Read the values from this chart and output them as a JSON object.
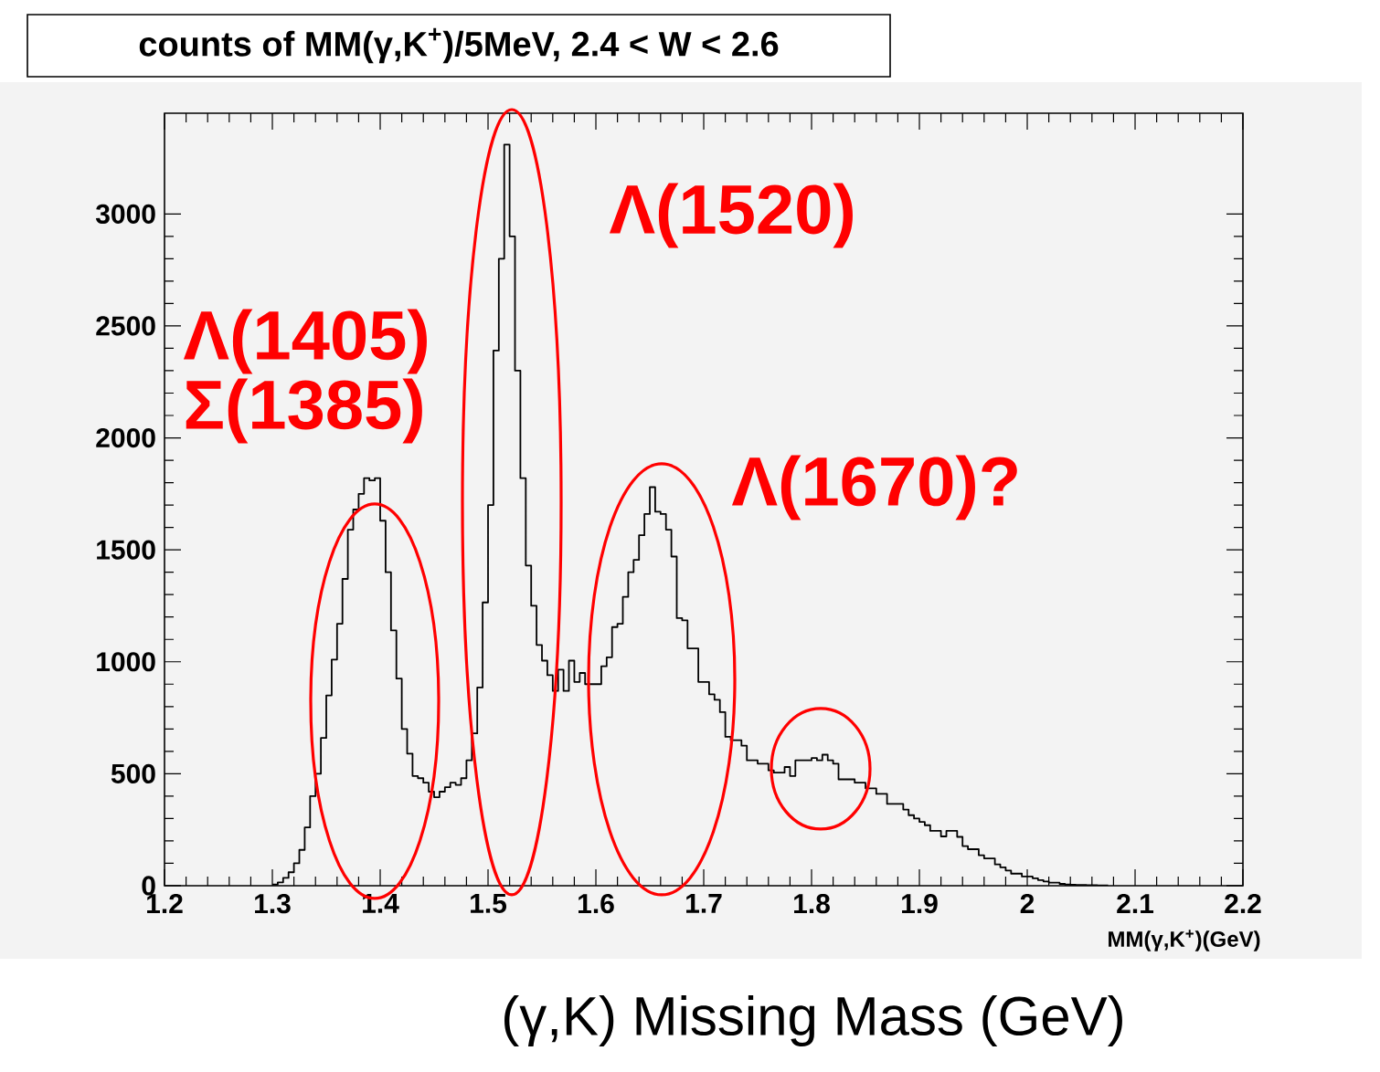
{
  "chart_data": {
    "type": "histogram",
    "title": "counts of MM(γ,K$^{+}$)/5MeV, 2.4 < W < 2.6",
    "xlabel": "MM(γ,K$^{+}$)(GeV)",
    "color": "#000000",
    "xlim": [
      1.2,
      2.2
    ],
    "ylim": [
      0,
      3450
    ],
    "xticks": [
      1.2,
      1.3,
      1.4,
      1.5,
      1.6,
      1.7,
      1.8,
      1.9,
      2,
      2.1,
      2.2
    ],
    "yticks": [
      0,
      500,
      1000,
      1500,
      2000,
      2500,
      3000
    ],
    "bins": [
      1.3,
      1.305,
      1.31,
      1.315,
      1.32,
      1.325,
      1.33,
      1.335,
      1.34,
      1.345,
      1.35,
      1.355,
      1.36,
      1.365,
      1.37,
      1.375,
      1.38,
      1.385,
      1.39,
      1.395,
      1.4,
      1.405,
      1.41,
      1.415,
      1.42,
      1.425,
      1.43,
      1.435,
      1.44,
      1.445,
      1.45,
      1.455,
      1.46,
      1.465,
      1.47,
      1.475,
      1.48,
      1.485,
      1.49,
      1.495,
      1.5,
      1.505,
      1.51,
      1.515,
      1.52,
      1.525,
      1.53,
      1.535,
      1.54,
      1.545,
      1.55,
      1.555,
      1.56,
      1.565,
      1.57,
      1.575,
      1.58,
      1.585,
      1.59,
      1.595,
      1.6,
      1.605,
      1.61,
      1.615,
      1.62,
      1.625,
      1.63,
      1.635,
      1.64,
      1.645,
      1.65,
      1.655,
      1.66,
      1.665,
      1.67,
      1.675,
      1.68,
      1.685,
      1.69,
      1.695,
      1.7,
      1.705,
      1.71,
      1.715,
      1.72,
      1.725,
      1.73,
      1.735,
      1.74,
      1.745,
      1.75,
      1.755,
      1.76,
      1.765,
      1.77,
      1.775,
      1.78,
      1.785,
      1.79,
      1.795,
      1.8,
      1.805,
      1.81,
      1.815,
      1.82,
      1.825,
      1.83,
      1.835,
      1.84,
      1.845,
      1.85,
      1.855,
      1.86,
      1.865,
      1.87,
      1.875,
      1.88,
      1.885,
      1.89,
      1.895,
      1.9,
      1.905,
      1.91,
      1.915,
      1.92,
      1.925,
      1.93,
      1.935,
      1.94,
      1.945,
      1.95,
      1.955,
      1.96,
      1.965,
      1.97,
      1.975,
      1.98,
      1.985,
      1.99,
      1.995,
      2,
      2.005,
      2.01,
      2.015,
      2.02,
      2.025,
      2.03,
      2.035,
      2.04,
      2.045,
      2.05,
      2.055,
      2.06,
      2.065,
      2.07,
      2.075
    ],
    "values": [
      5,
      15,
      35,
      60,
      100,
      160,
      260,
      400,
      500,
      660,
      850,
      1010,
      1170,
      1370,
      1590,
      1680,
      1750,
      1820,
      1810,
      1820,
      1630,
      1400,
      1140,
      925,
      700,
      590,
      490,
      480,
      460,
      420,
      395,
      420,
      440,
      460,
      450,
      480,
      560,
      680,
      885,
      1265,
      1700,
      2390,
      2800,
      3310,
      2900,
      2300,
      1820,
      1430,
      1250,
      1075,
      1005,
      940,
      870,
      965,
      870,
      1005,
      910,
      950,
      900,
      900,
      900,
      980,
      1020,
      1155,
      1170,
      1290,
      1400,
      1455,
      1565,
      1660,
      1780,
      1670,
      1660,
      1590,
      1470,
      1195,
      1185,
      1060,
      1060,
      910,
      910,
      855,
      830,
      775,
      665,
      650,
      650,
      625,
      560,
      560,
      545,
      545,
      515,
      505,
      505,
      530,
      490,
      560,
      560,
      560,
      570,
      560,
      585,
      560,
      545,
      475,
      475,
      475,
      460,
      460,
      435,
      435,
      410,
      410,
      365,
      365,
      365,
      340,
      315,
      300,
      285,
      270,
      245,
      245,
      220,
      245,
      245,
      218,
      177,
      163,
      163,
      136,
      122,
      122,
      95,
      82,
      68,
      54,
      54,
      41,
      41,
      33,
      25,
      19,
      14,
      14,
      8,
      5,
      4,
      3,
      3,
      2,
      2,
      1,
      1
    ],
    "annotations": [
      "Λ(1405)",
      "Σ(1385)",
      "Λ(1520)",
      "Λ(1670)?",
      "(γ,K) Missing Mass (GeV)"
    ]
  }
}
